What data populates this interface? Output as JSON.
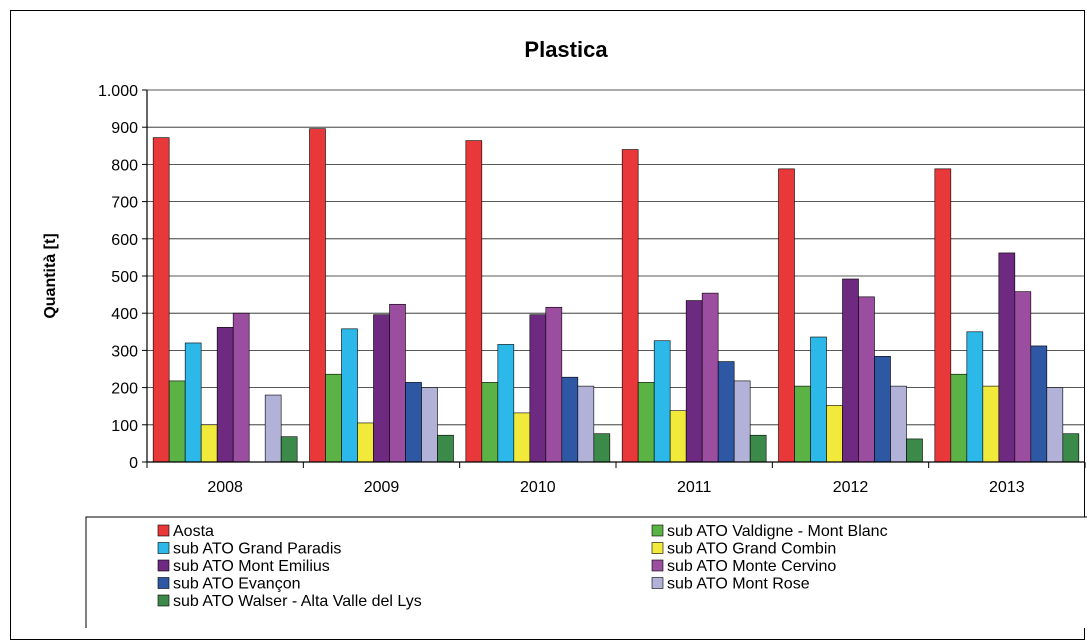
{
  "chart_data": {
    "type": "bar",
    "title": "Plastica",
    "ylabel": "Quantità [t]",
    "xlabel": "",
    "ylim": [
      0,
      1000
    ],
    "yticks": [
      0,
      100,
      200,
      300,
      400,
      500,
      600,
      700,
      800,
      900,
      1000
    ],
    "ytick_labels": [
      "0",
      "100",
      "200",
      "300",
      "400",
      "500",
      "600",
      "700",
      "800",
      "900",
      "1.000"
    ],
    "grid": "horizontal",
    "legend_position": "bottom",
    "categories": [
      "2008",
      "2009",
      "2010",
      "2011",
      "2012",
      "2013"
    ],
    "series": [
      {
        "name": "Aosta",
        "color": "#e8383a",
        "values": [
          872,
          896,
          864,
          840,
          788,
          788
        ]
      },
      {
        "name": "sub ATO Valdigne - Mont Blanc",
        "color": "#5bb245",
        "values": [
          218,
          236,
          214,
          214,
          204,
          236
        ]
      },
      {
        "name": "sub ATO Grand Paradis",
        "color": "#2cb8e8",
        "values": [
          320,
          358,
          316,
          326,
          336,
          350
        ]
      },
      {
        "name": "sub ATO Grand Combin",
        "color": "#f2ea3a",
        "values": [
          100,
          105,
          132,
          138,
          152,
          204
        ]
      },
      {
        "name": "sub ATO Mont Emilius",
        "color": "#6e2a80",
        "values": [
          362,
          396,
          396,
          434,
          492,
          562
        ]
      },
      {
        "name": "sub ATO Monte Cervino",
        "color": "#9b4d9f",
        "values": [
          400,
          424,
          416,
          454,
          444,
          458
        ]
      },
      {
        "name": "sub ATO Evançon",
        "color": "#2f58a4",
        "values": [
          0,
          214,
          228,
          270,
          284,
          312
        ]
      },
      {
        "name": "sub ATO Mont Rose",
        "color": "#b2b2d8",
        "values": [
          180,
          200,
          204,
          218,
          204,
          200
        ]
      },
      {
        "name": "sub ATO Walser - Alta Valle del Lys",
        "color": "#3c8a4a",
        "values": [
          68,
          72,
          76,
          72,
          62,
          76
        ]
      }
    ]
  }
}
